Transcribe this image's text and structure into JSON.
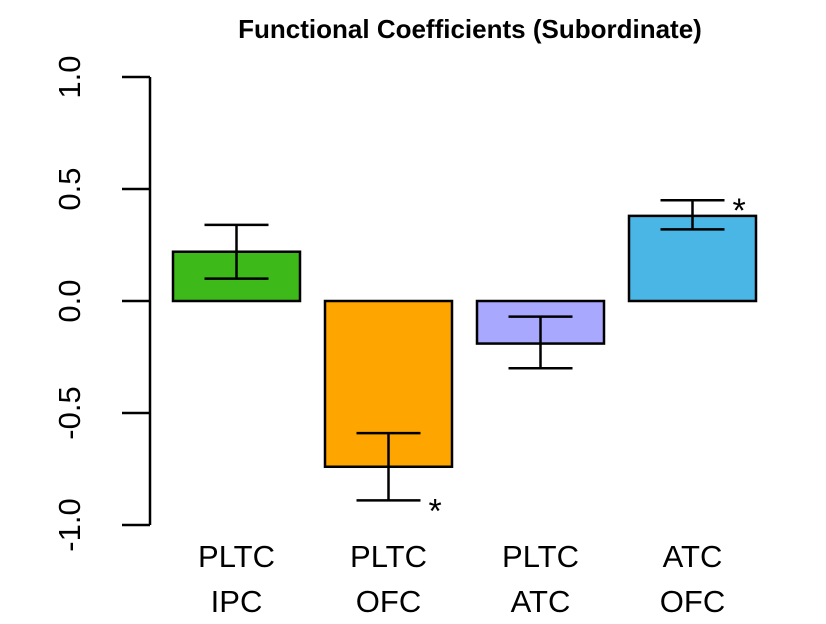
{
  "chart_data": {
    "type": "bar",
    "title": "Functional Coefficients (Subordinate)",
    "xlabel": "",
    "ylabel": "",
    "ylim": [
      -1.0,
      1.0
    ],
    "yticks": [
      -1.0,
      -0.5,
      0.0,
      0.5,
      1.0
    ],
    "ytick_labels": [
      "-1.0",
      "-0.5",
      "0.0",
      "0.5",
      "1.0"
    ],
    "grid": false,
    "categories": [
      {
        "line1": "PLTC",
        "line2": "IPC",
        "value": 0.22,
        "err_low": 0.1,
        "err_high": 0.34,
        "color": "#3eb91a",
        "significance": ""
      },
      {
        "line1": "PLTC",
        "line2": "OFC",
        "value": -0.74,
        "err_low": -0.89,
        "err_high": -0.59,
        "color": "#ffa500",
        "significance": "*"
      },
      {
        "line1": "PLTC",
        "line2": "ATC",
        "value": -0.19,
        "err_low": -0.3,
        "err_high": -0.07,
        "color": "#a8a8ff",
        "significance": ""
      },
      {
        "line1": "ATC",
        "line2": "OFC",
        "value": 0.38,
        "err_low": 0.32,
        "err_high": 0.45,
        "color": "#4ab6e6",
        "significance": "*"
      }
    ]
  }
}
